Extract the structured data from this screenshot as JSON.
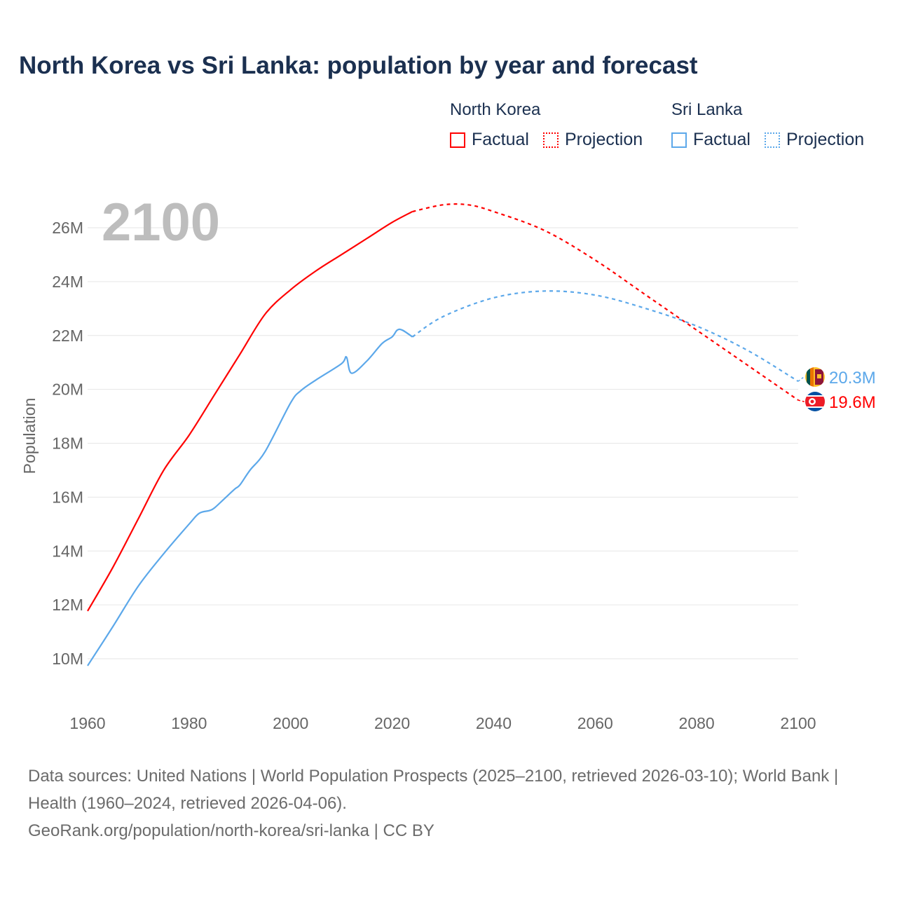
{
  "title": "North Korea vs Sri Lanka: population by year and forecast",
  "legend": {
    "groups": [
      {
        "name": "North Korea",
        "factual": "Factual",
        "projection": "Projection",
        "color": "#ff0000"
      },
      {
        "name": "Sri Lanka",
        "factual": "Factual",
        "projection": "Projection",
        "color": "#5ca8ea"
      }
    ]
  },
  "footer": {
    "sources": "Data sources: United Nations | World Population Prospects (2025–2100, retrieved 2026-03-10); World Bank | Health (1960–2024, retrieved 2026-04-06).",
    "url": "GeoRank.org/population/north-korea/sri-lanka | CC BY"
  },
  "chart_data": {
    "type": "line",
    "title": "North Korea vs Sri Lanka: population by year and forecast",
    "year_label": "2100",
    "xlabel": "",
    "ylabel": "Population",
    "xlim": [
      1960,
      2100
    ],
    "ylim": [
      9,
      27
    ],
    "x_ticks": [
      "1960",
      "1980",
      "2000",
      "2020",
      "2040",
      "2060",
      "2080",
      "2100"
    ],
    "y_ticks": [
      "10M",
      "12M",
      "14M",
      "16M",
      "18M",
      "20M",
      "22M",
      "24M",
      "26M"
    ],
    "y_tick_values": [
      10,
      12,
      14,
      16,
      18,
      20,
      22,
      24,
      26
    ],
    "units": "millions",
    "grid": true,
    "legend_position": "top-right",
    "series": [
      {
        "name": "North Korea",
        "color": "#ff0000",
        "end_label": "19.6M",
        "factual": [
          [
            1960,
            11.77
          ],
          [
            1965,
            13.4
          ],
          [
            1970,
            15.2
          ],
          [
            1975,
            17.0
          ],
          [
            1980,
            18.3
          ],
          [
            1985,
            19.8
          ],
          [
            1990,
            21.3
          ],
          [
            1995,
            22.8
          ],
          [
            2000,
            23.7
          ],
          [
            2005,
            24.4
          ],
          [
            2010,
            25.0
          ],
          [
            2015,
            25.6
          ],
          [
            2020,
            26.2
          ],
          [
            2024,
            26.6
          ]
        ],
        "projection": [
          [
            2024,
            26.6
          ],
          [
            2030,
            26.85
          ],
          [
            2035,
            26.85
          ],
          [
            2040,
            26.6
          ],
          [
            2050,
            25.9
          ],
          [
            2060,
            24.8
          ],
          [
            2070,
            23.5
          ],
          [
            2080,
            22.2
          ],
          [
            2090,
            20.9
          ],
          [
            2100,
            19.6
          ]
        ]
      },
      {
        "name": "Sri Lanka",
        "color": "#5ca8ea",
        "end_label": "20.3M",
        "factual": [
          [
            1960,
            9.74
          ],
          [
            1965,
            11.2
          ],
          [
            1970,
            12.7
          ],
          [
            1975,
            13.9
          ],
          [
            1980,
            15.0
          ],
          [
            1982,
            15.4
          ],
          [
            1984,
            15.5
          ],
          [
            1985,
            15.6
          ],
          [
            1987,
            15.95
          ],
          [
            1989,
            16.3
          ],
          [
            1990,
            16.45
          ],
          [
            1992,
            17.0
          ],
          [
            1995,
            17.7
          ],
          [
            2000,
            19.5
          ],
          [
            2002,
            19.95
          ],
          [
            2005,
            20.35
          ],
          [
            2010,
            20.95
          ],
          [
            2011,
            21.2
          ],
          [
            2012,
            20.6
          ],
          [
            2015,
            21.05
          ],
          [
            2018,
            21.7
          ],
          [
            2020,
            21.95
          ],
          [
            2021,
            22.2
          ],
          [
            2022,
            22.2
          ],
          [
            2024,
            21.95
          ]
        ],
        "projection": [
          [
            2024,
            21.95
          ],
          [
            2030,
            22.7
          ],
          [
            2040,
            23.4
          ],
          [
            2050,
            23.65
          ],
          [
            2060,
            23.5
          ],
          [
            2070,
            23.0
          ],
          [
            2080,
            22.35
          ],
          [
            2090,
            21.45
          ],
          [
            2100,
            20.3
          ]
        ]
      }
    ]
  }
}
